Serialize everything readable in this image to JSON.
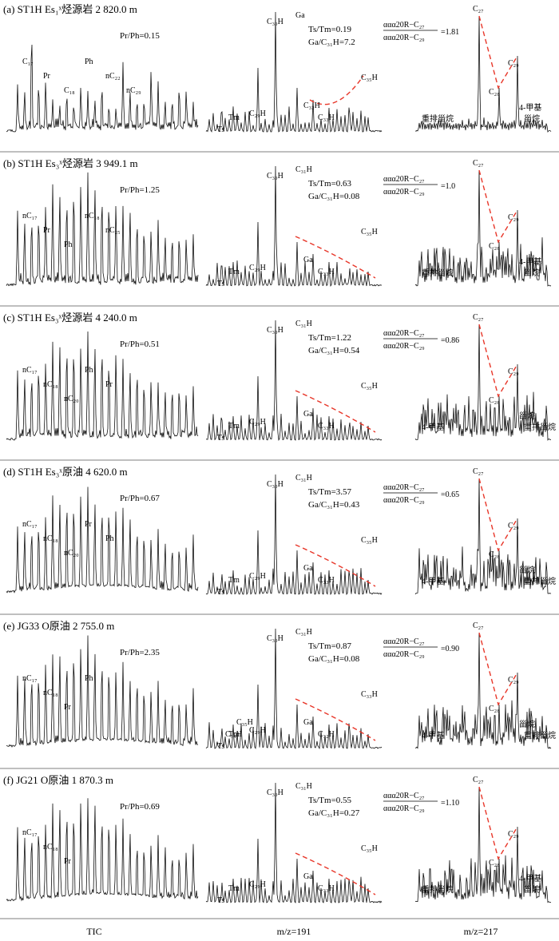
{
  "chart_data": {
    "type": "line",
    "columns": [
      "TIC",
      "m/z=191",
      "m/z=217"
    ],
    "panels": [
      {
        "title": "(a) ST1H  Es₁ˣ烃源岩 2 820.0 m",
        "prph": "Pr/Ph=0.15",
        "tstm": "Ts/Tm=0.19",
        "gac31": "Ga/C₃₁H=7.2",
        "ratio_num": "ααα20R−C₂₇",
        "ratio_den": "ααα20R−C₂₉",
        "ratio_val": "=1.81",
        "tic_labels": [
          "C₁₇",
          "Pr",
          "C₁₈",
          "Ph",
          "nC₂₂",
          "nC₂₉"
        ],
        "m191_labels": [
          "Ts",
          "Tm",
          "C₂₉H",
          "C₃₀H",
          "Ga",
          "C₃₂H",
          "C₃₃H",
          "C₃₅H"
        ],
        "m217_labels": [
          "C₂₇",
          "C₂₈",
          "C₂₉",
          "重排甾烷",
          "4-甲基",
          "甾烷"
        ]
      },
      {
        "title": "(b) ST1H  Es₃ˣ烃源岩 3 949.1 m",
        "prph": "Pr/Ph=1.25",
        "tstm": "Ts/Tm=0.63",
        "gac31": "Ga/C₃₁H=0.08",
        "ratio_num": "ααα20R−C₂₇",
        "ratio_den": "ααα20R−C₂₉",
        "ratio_val": "=1.0",
        "tic_labels": [
          "nC₁₇",
          "Pr",
          "Ph",
          "nC₁₈",
          "nC₂₅"
        ],
        "m191_labels": [
          "Ts",
          "Tm",
          "C₂₉H",
          "C₃₀H",
          "C₃₁H",
          "Ga",
          "C₃₃H",
          "C₃₅H"
        ],
        "m217_labels": [
          "C₂₇",
          "C₂₈",
          "C₂₉",
          "重排甾烷",
          "4-甲基",
          "甾烷"
        ]
      },
      {
        "title": "(c) ST1H  Es₃ˣ烃源岩 4 240.0 m",
        "prph": "Pr/Ph=0.51",
        "tstm": "Ts/Tm=1.22",
        "gac31": "Ga/C₃₁H=0.54",
        "ratio_num": "ααα20R−C₂₇",
        "ratio_den": "ααα20R−C₂₉",
        "ratio_val": "=0.86",
        "tic_labels": [
          "nC₁₇",
          "nC₁₈",
          "nC₂₀",
          "Ph",
          "Pr"
        ],
        "m191_labels": [
          "Ts",
          "Tm",
          "C₂₉H",
          "C₃₀H",
          "C₃₁H",
          "Ga",
          "C₃₃H",
          "C₃₅H"
        ],
        "m217_labels": [
          "C₂₇",
          "C₂₈",
          "C₂₉",
          "4-甲基",
          "甾烷",
          "重排甾烷"
        ]
      },
      {
        "title": "(d) ST1H  Es₃ˣ原油 4 620.0 m",
        "prph": "Pr/Ph=0.67",
        "tstm": "Ts/Tm=3.57",
        "gac31": "Ga/C₃₁H=0.43",
        "ratio_num": "ααα20R−C₂₇",
        "ratio_den": "ααα20R−C₂₉",
        "ratio_val": "=0.65",
        "tic_labels": [
          "nC₁₇",
          "nC₁₈",
          "nC₂₀",
          "Pr",
          "Ph"
        ],
        "m191_labels": [
          "Ts",
          "Tm",
          "C₂₉H",
          "C₃₀H",
          "C₃₁H",
          "Ga",
          "C₃₃H",
          "C₃₅H"
        ],
        "m217_labels": [
          "C₂₇",
          "C₂₈",
          "C₂₉",
          "4-甲基",
          "甾烷",
          "重排甾烷"
        ]
      },
      {
        "title": "(e) JG33   O原油 2 755.0 m",
        "prph": "Pr/Ph=2.35",
        "tstm": "Ts/Tm=0.87",
        "gac31": "Ga/C₃₁H=0.08",
        "ratio_num": "ααα20R−C₂₇",
        "ratio_den": "ααα20R−C₂₉",
        "ratio_val": "=0.90",
        "tic_labels": [
          "nC₁₇",
          "nC₁₈",
          "Pr",
          "Ph"
        ],
        "m191_labels": [
          "Ts",
          "Tm",
          "C₂₉H",
          "C₃₀H",
          "C₃₁H",
          "Ga",
          "C₃₂H",
          "C₃₃H",
          "C₃₄H",
          "C₃₅H"
        ],
        "m217_labels": [
          "C₂₇",
          "C₂₈",
          "C₂₉",
          "4-甲基",
          "甾烷",
          "重排甾烷"
        ]
      },
      {
        "title": "(f) JG21   O原油 1 870.3 m",
        "prph": "Pr/Ph=0.69",
        "tstm": "Ts/Tm=0.55",
        "gac31": "Ga/C₃₁H=0.27",
        "ratio_num": "ααα20R−C₂₇",
        "ratio_den": "ααα20R−C₂₉",
        "ratio_val": "=1.10",
        "tic_labels": [
          "nC₁₇",
          "nC₁₈",
          "Pr"
        ],
        "m191_labels": [
          "Ts",
          "Tm",
          "C₂₉H",
          "C₃₀H",
          "C₃₁H",
          "Ga",
          "C₃₃H",
          "C₃₅H"
        ],
        "m217_labels": [
          "C₂₇",
          "C₂₈",
          "C₂₉",
          "重排甾烷",
          "4-甲基",
          "甾烷"
        ]
      }
    ],
    "colors": {
      "trace": "#111111",
      "trend": "#e8372a",
      "baseline": "#555555"
    }
  }
}
